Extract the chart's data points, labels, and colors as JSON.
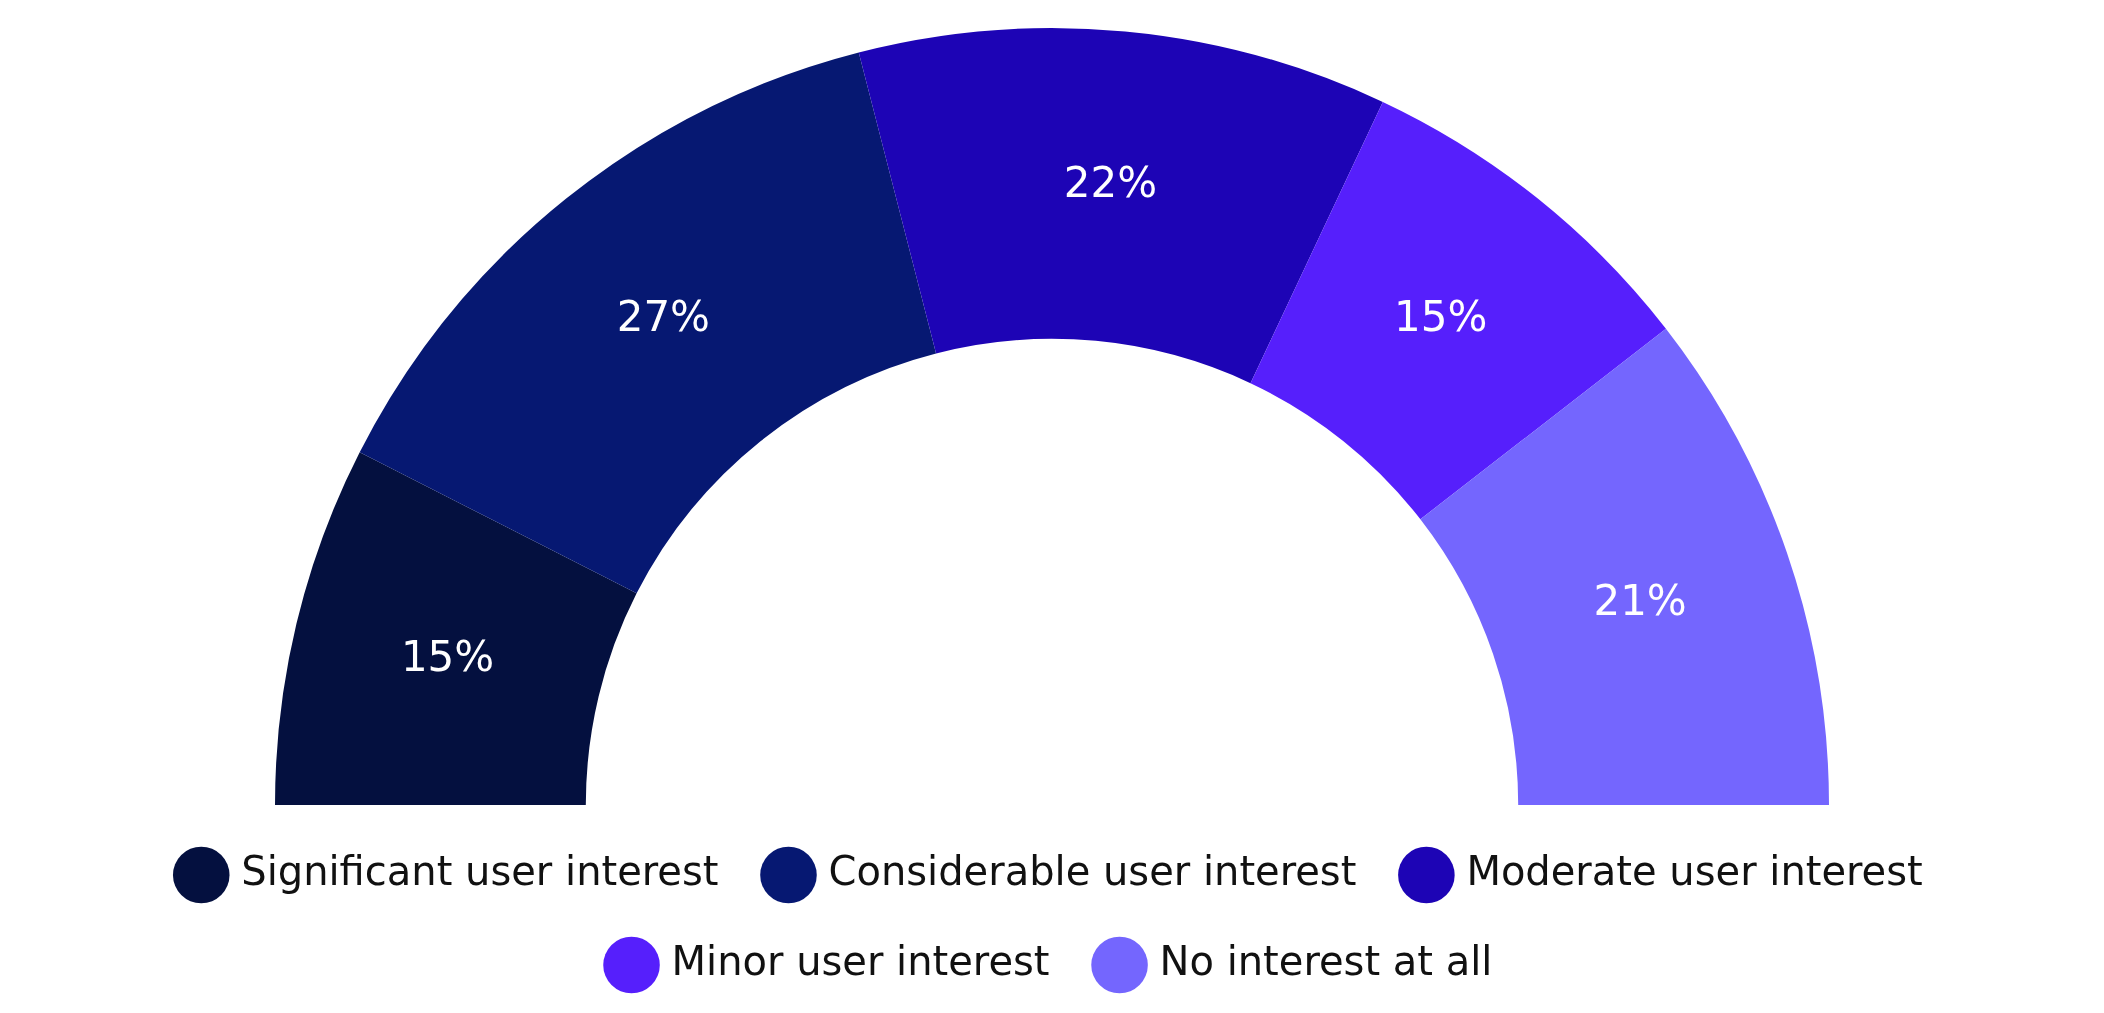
{
  "chart_data": {
    "type": "donut",
    "categories": [
      "Significant user interest",
      "Considerable user interest",
      "Moderate user interest",
      "Minor user interest",
      "No interest at all"
    ],
    "values": [
      15,
      27,
      22,
      15,
      21
    ],
    "colors": [
      "#04103f",
      "#061872",
      "#1d04b5",
      "#561ffc",
      "#7466fe"
    ],
    "value_labels": [
      "15%",
      "27%",
      "22%",
      "15%",
      "21%"
    ],
    "legend": "bottom"
  }
}
